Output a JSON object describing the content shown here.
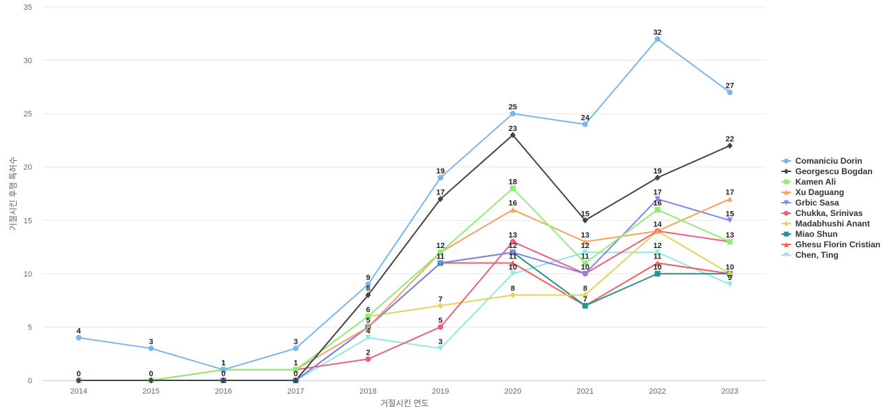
{
  "chart_data": {
    "type": "line",
    "title": "",
    "xlabel": "거절시킨 연도",
    "ylabel": "거절시킨 후행 특허수",
    "x": [
      "2014",
      "2015",
      "2016",
      "2017",
      "2018",
      "2019",
      "2020",
      "2021",
      "2022",
      "2023"
    ],
    "ylim": [
      0,
      35
    ],
    "yticks": [
      0,
      5,
      10,
      15,
      20,
      25,
      30,
      35
    ],
    "grid": true,
    "legend_position": "right",
    "series": [
      {
        "name": "Comaniciu Dorin",
        "color": "#7cb5ec",
        "marker": "circle",
        "values": [
          4,
          3,
          1,
          3,
          9,
          19,
          25,
          24,
          32,
          27
        ]
      },
      {
        "name": "Georgescu Bogdan",
        "color": "#434348",
        "marker": "diamond",
        "values": [
          0,
          0,
          0,
          0,
          8,
          17,
          23,
          15,
          19,
          22
        ]
      },
      {
        "name": "Kamen Ali",
        "color": "#90ed7d",
        "marker": "square",
        "values": [
          0,
          0,
          1,
          1,
          6,
          12,
          18,
          11,
          16,
          13
        ]
      },
      {
        "name": "Xu Daguang",
        "color": "#f7a35c",
        "marker": "triangle",
        "values": [
          0,
          0,
          1,
          1,
          5,
          12,
          16,
          13,
          14,
          17
        ]
      },
      {
        "name": "Grbic Sasa",
        "color": "#8085e9",
        "marker": "triangle-down",
        "values": [
          0,
          0,
          0,
          0,
          5,
          11,
          12,
          10,
          17,
          15
        ]
      },
      {
        "name": "Chukka, Srinivas",
        "color": "#f15c80",
        "marker": "circle",
        "values": [
          0,
          0,
          1,
          1,
          2,
          5,
          13,
          10,
          14,
          13
        ]
      },
      {
        "name": "Madabhushi Anant",
        "color": "#e4d354",
        "marker": "diamond",
        "values": [
          0,
          0,
          1,
          1,
          6,
          7,
          8,
          8,
          14,
          10
        ]
      },
      {
        "name": "Miao Shun",
        "color": "#2b908f",
        "marker": "square",
        "values": [
          0,
          0,
          0,
          0,
          5,
          11,
          12,
          7,
          10,
          10
        ]
      },
      {
        "name": "Ghesu Florin Cristian",
        "color": "#f45b5b",
        "marker": "triangle",
        "values": [
          0,
          0,
          0,
          0,
          5,
          11,
          11,
          7,
          11,
          10
        ]
      },
      {
        "name": "Chen, Ting",
        "color": "#91e8e1",
        "marker": "triangle-down",
        "values": [
          0,
          0,
          0,
          0,
          4,
          3,
          10,
          12,
          12,
          9
        ]
      }
    ],
    "data_labels": [
      {
        "series": 0,
        "index": 0,
        "text": "4"
      },
      {
        "series": 0,
        "index": 1,
        "text": "3"
      },
      {
        "series": 0,
        "index": 2,
        "text": "1"
      },
      {
        "series": 0,
        "index": 3,
        "text": "3"
      },
      {
        "series": 0,
        "index": 4,
        "text": "9"
      },
      {
        "series": 0,
        "index": 5,
        "text": "19"
      },
      {
        "series": 0,
        "index": 6,
        "text": "25"
      },
      {
        "series": 0,
        "index": 7,
        "text": "24"
      },
      {
        "series": 0,
        "index": 8,
        "text": "32"
      },
      {
        "series": 0,
        "index": 9,
        "text": "27"
      },
      {
        "series": 1,
        "index": 0,
        "text": "0"
      },
      {
        "series": 1,
        "index": 1,
        "text": "0"
      },
      {
        "series": 1,
        "index": 2,
        "text": "0"
      },
      {
        "series": 1,
        "index": 3,
        "text": "0"
      },
      {
        "series": 1,
        "index": 4,
        "text": "8"
      },
      {
        "series": 1,
        "index": 5,
        "text": "17"
      },
      {
        "series": 1,
        "index": 6,
        "text": "23"
      },
      {
        "series": 1,
        "index": 7,
        "text": "15"
      },
      {
        "series": 1,
        "index": 8,
        "text": "19"
      },
      {
        "series": 1,
        "index": 9,
        "text": "22"
      },
      {
        "series": 2,
        "index": 4,
        "text": "6"
      },
      {
        "series": 2,
        "index": 5,
        "text": "12"
      },
      {
        "series": 2,
        "index": 6,
        "text": "18"
      },
      {
        "series": 2,
        "index": 7,
        "text": "11"
      },
      {
        "series": 2,
        "index": 8,
        "text": "16"
      },
      {
        "series": 2,
        "index": 9,
        "text": "13"
      },
      {
        "series": 3,
        "index": 2,
        "text": "1"
      },
      {
        "series": 3,
        "index": 3,
        "text": "1"
      },
      {
        "series": 3,
        "index": 4,
        "text": "5"
      },
      {
        "series": 3,
        "index": 6,
        "text": "16"
      },
      {
        "series": 3,
        "index": 7,
        "text": "13"
      },
      {
        "series": 3,
        "index": 9,
        "text": "17"
      },
      {
        "series": 4,
        "index": 8,
        "text": "17"
      },
      {
        "series": 4,
        "index": 9,
        "text": "15"
      },
      {
        "series": 5,
        "index": 4,
        "text": "2"
      },
      {
        "series": 5,
        "index": 5,
        "text": "5"
      },
      {
        "series": 5,
        "index": 6,
        "text": "13"
      },
      {
        "series": 5,
        "index": 7,
        "text": "10"
      },
      {
        "series": 5,
        "index": 8,
        "text": "14"
      },
      {
        "series": 6,
        "index": 5,
        "text": "7"
      },
      {
        "series": 6,
        "index": 6,
        "text": "8"
      },
      {
        "series": 6,
        "index": 7,
        "text": "8"
      },
      {
        "series": 6,
        "index": 9,
        "text": "10"
      },
      {
        "series": 7,
        "index": 5,
        "text": "11"
      },
      {
        "series": 7,
        "index": 6,
        "text": "12"
      },
      {
        "series": 7,
        "index": 7,
        "text": "7"
      },
      {
        "series": 7,
        "index": 8,
        "text": "10"
      },
      {
        "series": 8,
        "index": 6,
        "text": "11"
      },
      {
        "series": 8,
        "index": 8,
        "text": "11"
      },
      {
        "series": 9,
        "index": 4,
        "text": "4"
      },
      {
        "series": 9,
        "index": 5,
        "text": "3"
      },
      {
        "series": 9,
        "index": 6,
        "text": "10"
      },
      {
        "series": 9,
        "index": 7,
        "text": "12"
      },
      {
        "series": 9,
        "index": 8,
        "text": "12"
      },
      {
        "series": 9,
        "index": 9,
        "text": "9"
      }
    ]
  }
}
